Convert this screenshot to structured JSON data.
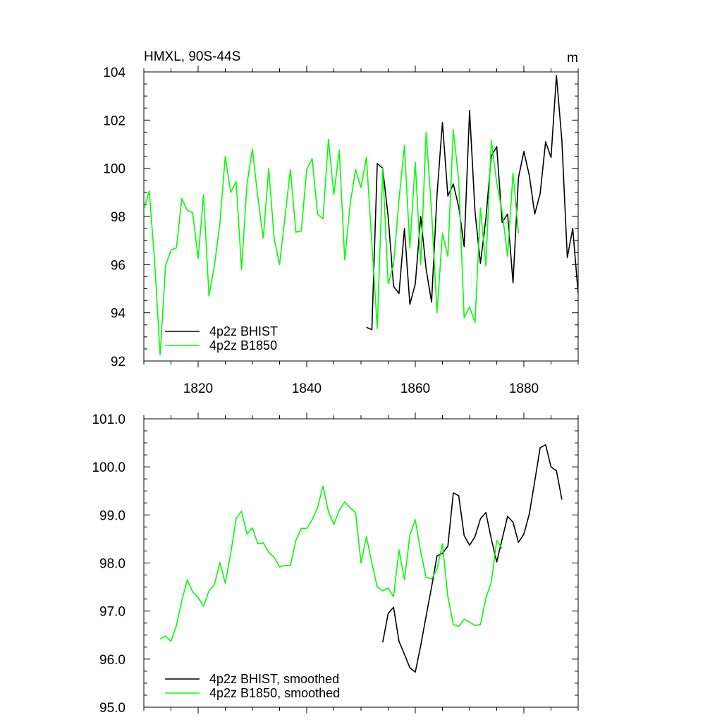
{
  "chart_data": [
    {
      "type": "line",
      "title": "HMXL, 90S-44S",
      "units": "m",
      "xlim": [
        1810,
        1890
      ],
      "ylim": [
        92,
        104
      ],
      "x_ticks": [
        1820,
        1840,
        1860,
        1880
      ],
      "y_ticks": [
        92,
        94,
        96,
        98,
        100,
        102,
        104
      ],
      "y_tick_labels": [
        "92",
        "94",
        "96",
        "98",
        "100",
        "102",
        "104"
      ],
      "legend_position": "lower-left",
      "series": [
        {
          "name": "4p2z BHIST",
          "color": "#000000",
          "x": [
            1851,
            1852,
            1853,
            1854,
            1855,
            1856,
            1857,
            1858,
            1859,
            1860,
            1861,
            1862,
            1863,
            1864,
            1865,
            1866,
            1867,
            1868,
            1869,
            1870,
            1871,
            1872,
            1873,
            1874,
            1875,
            1876,
            1877,
            1878,
            1879,
            1880,
            1881,
            1882,
            1883,
            1884,
            1885,
            1886,
            1887,
            1888,
            1889,
            1890
          ],
          "y": [
            93.4,
            93.3,
            100.2,
            100.0,
            98.0,
            95.1,
            94.8,
            97.5,
            94.35,
            95.2,
            98.0,
            95.8,
            94.45,
            98.9,
            101.9,
            98.85,
            99.35,
            98.4,
            96.75,
            102.4,
            98.2,
            96.05,
            97.9,
            100.5,
            100.9,
            97.75,
            98.1,
            95.25,
            99.6,
            100.7,
            99.7,
            98.1,
            98.95,
            101.1,
            100.45,
            103.85,
            101.15,
            96.3,
            97.5,
            94.8
          ]
        },
        {
          "name": "4p2z B1850",
          "color": "#00ff00",
          "x": [
            1810,
            1811,
            1812,
            1813,
            1814,
            1815,
            1816,
            1817,
            1818,
            1819,
            1820,
            1821,
            1822,
            1823,
            1824,
            1825,
            1826,
            1827,
            1828,
            1829,
            1830,
            1831,
            1832,
            1833,
            1834,
            1835,
            1836,
            1837,
            1838,
            1839,
            1840,
            1841,
            1842,
            1843,
            1844,
            1845,
            1846,
            1847,
            1848,
            1849,
            1850,
            1851,
            1852,
            1853,
            1854,
            1855,
            1856,
            1857,
            1858,
            1859,
            1860,
            1861,
            1862,
            1863,
            1864,
            1865,
            1866,
            1867,
            1868,
            1869,
            1870,
            1871,
            1872,
            1873,
            1874,
            1875,
            1876,
            1877,
            1878,
            1879
          ],
          "y": [
            98.3,
            99.05,
            96.1,
            92.25,
            95.95,
            96.6,
            96.7,
            98.75,
            98.25,
            98.15,
            96.25,
            98.9,
            94.7,
            95.95,
            97.7,
            100.5,
            99.0,
            99.45,
            95.8,
            99.35,
            100.8,
            98.8,
            97.1,
            100.0,
            97.1,
            96.0,
            98.0,
            99.95,
            97.35,
            97.4,
            99.95,
            100.4,
            98.1,
            97.9,
            101.2,
            98.9,
            100.75,
            96.2,
            98.5,
            99.95,
            99.2,
            100.45,
            96.9,
            93.35,
            100.0,
            95.2,
            96.0,
            98.7,
            100.95,
            96.7,
            100.25,
            96.0,
            101.5,
            98.2,
            94.0,
            97.3,
            96.35,
            101.6,
            99.5,
            93.8,
            94.25,
            93.6,
            98.35,
            95.95,
            101.15,
            99.4,
            98.2,
            96.35,
            99.8,
            97.3
          ]
        }
      ]
    },
    {
      "type": "line",
      "xlim": [
        1810,
        1890
      ],
      "ylim": [
        95,
        101
      ],
      "x_ticks": [
        1820,
        1840,
        1860,
        1880
      ],
      "y_ticks": [
        95,
        96,
        97,
        98,
        99,
        100,
        101
      ],
      "y_tick_labels": [
        "95.0",
        "96.0",
        "97.0",
        "98.0",
        "99.0",
        "100.0",
        "101.0"
      ],
      "legend_position": "lower-left",
      "series": [
        {
          "name": "4p2z BHIST, smoothed",
          "color": "#000000",
          "x": [
            1854,
            1855,
            1856,
            1857,
            1858,
            1859,
            1860,
            1861,
            1862,
            1863,
            1864,
            1865,
            1866,
            1867,
            1868,
            1869,
            1870,
            1871,
            1872,
            1873,
            1874,
            1875,
            1876,
            1877,
            1878,
            1879,
            1880,
            1881,
            1882,
            1883,
            1884,
            1885,
            1886,
            1887
          ],
          "y": [
            96.35,
            96.95,
            97.08,
            96.37,
            96.1,
            95.82,
            95.73,
            96.28,
            96.9,
            97.5,
            98.15,
            98.2,
            98.35,
            99.46,
            99.4,
            98.57,
            98.37,
            98.55,
            98.92,
            99.05,
            98.5,
            98.02,
            98.5,
            98.97,
            98.85,
            98.43,
            98.6,
            99.02,
            99.7,
            100.4,
            100.46,
            100.0,
            99.92,
            99.32
          ]
        },
        {
          "name": "4p2z B1850, smoothed",
          "color": "#00ff00",
          "x": [
            1813,
            1814,
            1815,
            1816,
            1817,
            1818,
            1819,
            1820,
            1821,
            1822,
            1823,
            1824,
            1825,
            1826,
            1827,
            1828,
            1829,
            1830,
            1831,
            1832,
            1833,
            1834,
            1835,
            1836,
            1837,
            1838,
            1839,
            1840,
            1841,
            1842,
            1843,
            1844,
            1845,
            1846,
            1847,
            1848,
            1849,
            1850,
            1851,
            1852,
            1853,
            1854,
            1855,
            1856,
            1857,
            1858,
            1859,
            1860,
            1861,
            1862,
            1863,
            1864,
            1865,
            1866,
            1867,
            1868,
            1869,
            1870,
            1871,
            1872,
            1873,
            1874,
            1875,
            1876,
            1877
          ],
          "y": [
            96.42,
            96.48,
            96.37,
            96.7,
            97.22,
            97.65,
            97.4,
            97.28,
            97.1,
            97.42,
            97.55,
            98.01,
            97.58,
            98.2,
            98.92,
            99.08,
            98.6,
            98.73,
            98.4,
            98.42,
            98.22,
            98.12,
            97.92,
            97.95,
            97.95,
            98.47,
            98.72,
            98.72,
            98.9,
            99.15,
            99.6,
            99.07,
            98.8,
            99.1,
            99.27,
            99.15,
            99.05,
            98.0,
            98.55,
            98.0,
            97.5,
            97.42,
            97.48,
            97.3,
            98.27,
            97.65,
            98.58,
            98.9,
            98.23,
            97.7,
            97.67,
            97.87,
            98.4,
            97.3,
            96.72,
            96.68,
            96.83,
            96.77,
            96.7,
            96.72,
            97.27,
            97.6,
            98.47,
            98.3,
            null
          ]
        }
      ]
    }
  ]
}
